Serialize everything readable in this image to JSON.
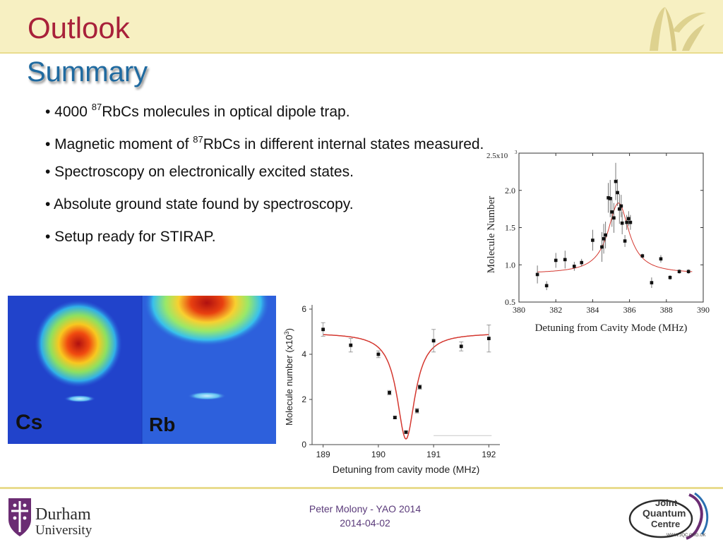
{
  "slide": {
    "title": "Outlook",
    "subtitle": "Summary",
    "bullets": [
      {
        "pre": "• 4000 ",
        "sup": "87",
        "post": "RbCs molecules in optical dipole trap."
      },
      {
        "pre": "• Magnetic moment of ",
        "sup": "87",
        "post": "RbCs in different internal states measured."
      },
      {
        "pre": "• Spectroscopy on electronically excited states.",
        "sup": "",
        "post": ""
      },
      {
        "pre": "• Absolute ground state found by spectroscopy.",
        "sup": "",
        "post": ""
      },
      {
        "pre": "• Setup ready for STIRAP.",
        "sup": "",
        "post": ""
      }
    ],
    "image_labels": {
      "cs": "Cs",
      "rb": "Rb"
    }
  },
  "footer": {
    "author": "Peter Molony - YAO 2014",
    "date": "2014-04-02",
    "university_name_line1": "Durham",
    "university_name_line2": "University",
    "jqc_line1": "Joint",
    "jqc_line2": "Quantum",
    "jqc_line3": "Centre",
    "jqc_url": "WWW.JQC.ORG.UK"
  },
  "colors": {
    "title": "#a8213a",
    "subtitle": "#1f6aa0",
    "header_band": "#f7f0c2",
    "fit_line": "#d4372f"
  },
  "chart_data": [
    {
      "type": "scatter",
      "title": "",
      "xlabel": "Detuning from Cavity Mode (MHz)",
      "ylabel": "Molecule Number",
      "y_multiplier_label": "2.5x10",
      "y_multiplier_exp": "3",
      "xlim": [
        380,
        390
      ],
      "ylim": [
        0.5,
        2.5
      ],
      "xticks": [
        380,
        382,
        384,
        386,
        388,
        390
      ],
      "yticks": [
        0.5,
        1.0,
        1.5,
        2.0
      ],
      "ytick_labels": [
        "0.5",
        "1.0",
        "1.5",
        "2.0"
      ],
      "points": [
        {
          "x": 381.0,
          "y": 0.87,
          "err": 0.12
        },
        {
          "x": 381.5,
          "y": 0.72,
          "err": 0.06
        },
        {
          "x": 382.0,
          "y": 1.06,
          "err": 0.1
        },
        {
          "x": 382.5,
          "y": 1.07,
          "err": 0.12
        },
        {
          "x": 383.0,
          "y": 0.98,
          "err": 0.06
        },
        {
          "x": 383.4,
          "y": 1.03,
          "err": 0.05
        },
        {
          "x": 384.0,
          "y": 1.33,
          "err": 0.14
        },
        {
          "x": 384.5,
          "y": 1.24,
          "err": 0.2
        },
        {
          "x": 384.6,
          "y": 1.35,
          "err": 0.2
        },
        {
          "x": 384.7,
          "y": 1.4,
          "err": 0.18
        },
        {
          "x": 384.85,
          "y": 1.9,
          "err": 0.2
        },
        {
          "x": 384.95,
          "y": 1.89,
          "err": 0.25
        },
        {
          "x": 385.05,
          "y": 1.71,
          "err": 0.2
        },
        {
          "x": 385.15,
          "y": 1.63,
          "err": 0.2
        },
        {
          "x": 385.25,
          "y": 2.12,
          "err": 0.25
        },
        {
          "x": 385.35,
          "y": 1.97,
          "err": 0.18
        },
        {
          "x": 385.45,
          "y": 1.75,
          "err": 0.2
        },
        {
          "x": 385.55,
          "y": 1.79,
          "err": 0.15
        },
        {
          "x": 385.6,
          "y": 1.56,
          "err": 0.15
        },
        {
          "x": 385.75,
          "y": 1.32,
          "err": 0.08
        },
        {
          "x": 385.85,
          "y": 1.57,
          "err": 0.1
        },
        {
          "x": 385.95,
          "y": 1.62,
          "err": 0.1
        },
        {
          "x": 386.05,
          "y": 1.57,
          "err": 0.1
        },
        {
          "x": 386.7,
          "y": 1.12,
          "err": 0.03
        },
        {
          "x": 387.2,
          "y": 0.76,
          "err": 0.07
        },
        {
          "x": 387.7,
          "y": 1.08,
          "err": 0.05
        },
        {
          "x": 388.2,
          "y": 0.83,
          "err": 0.03
        },
        {
          "x": 388.7,
          "y": 0.91,
          "err": 0.03
        },
        {
          "x": 389.2,
          "y": 0.91,
          "err": 0.03
        }
      ],
      "fit": {
        "center": 385.4,
        "baseline": 0.88,
        "amplitude": 0.95,
        "hwhm": 0.7
      }
    },
    {
      "type": "scatter",
      "title": "",
      "xlabel": "Detuning from cavity mode (MHz)",
      "ylabel": "Molecule number (x10",
      "ylabel_exp": "3",
      "ylabel_close": ")",
      "xlim": [
        188.8,
        192.2
      ],
      "ylim": [
        0,
        6
      ],
      "xticks": [
        189,
        190,
        191,
        192
      ],
      "yticks": [
        0,
        2,
        4,
        6
      ],
      "ytick_labels": [
        "0",
        "2",
        "4",
        "6"
      ],
      "points": [
        {
          "x": 189.0,
          "y": 5.1,
          "err": 0.3
        },
        {
          "x": 189.5,
          "y": 4.4,
          "err": 0.3
        },
        {
          "x": 190.0,
          "y": 4.0,
          "err": 0.15
        },
        {
          "x": 190.2,
          "y": 2.3,
          "err": 0.1
        },
        {
          "x": 190.3,
          "y": 1.2,
          "err": 0.05
        },
        {
          "x": 190.5,
          "y": 0.55,
          "err": 0.05
        },
        {
          "x": 190.7,
          "y": 1.5,
          "err": 0.1
        },
        {
          "x": 190.75,
          "y": 2.55,
          "err": 0.1
        },
        {
          "x": 191.0,
          "y": 4.6,
          "err": 0.5
        },
        {
          "x": 191.5,
          "y": 4.35,
          "err": 0.2
        },
        {
          "x": 192.0,
          "y": 4.7,
          "err": 0.6
        }
      ],
      "fit": {
        "center": 190.5,
        "baseline": 4.95,
        "depth": 4.7,
        "hwhm": 0.2
      }
    }
  ]
}
